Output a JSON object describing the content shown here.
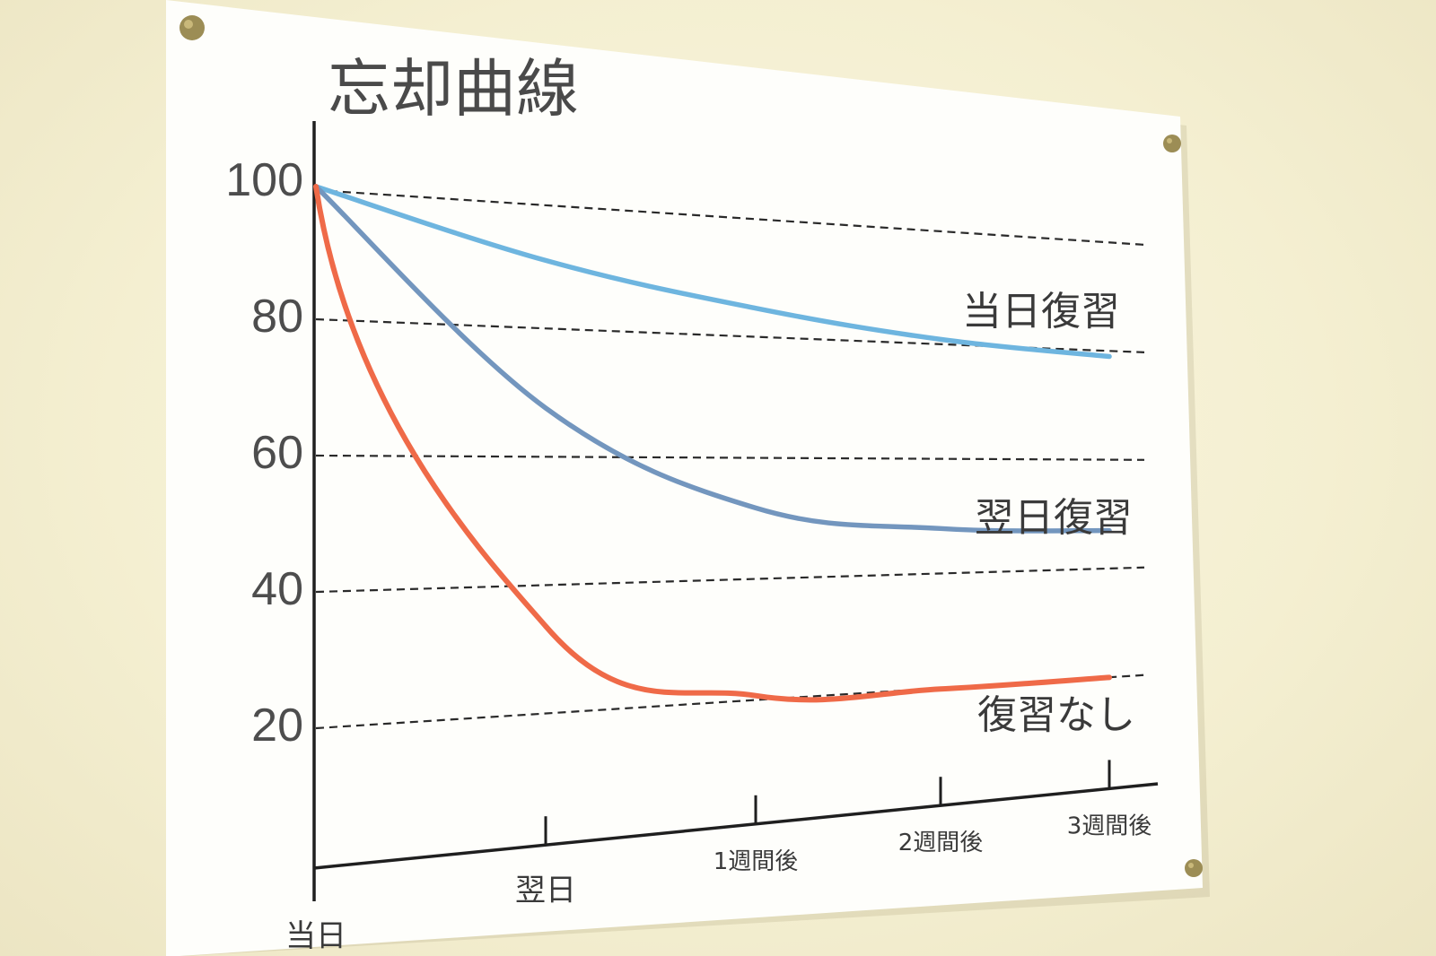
{
  "chart_data": {
    "type": "line",
    "title": "忘却曲線",
    "xlabel": "",
    "ylabel": "",
    "x": [
      "当日",
      "翌日",
      "1週間後",
      "2週間後",
      "3週間後"
    ],
    "ylim": [
      0,
      100
    ],
    "yticks": [
      "100",
      "80",
      "60",
      "40",
      "20"
    ],
    "grid": true,
    "series": [
      {
        "name": "当日復習",
        "color": "#6eb5df",
        "values": [
          100,
          91,
          85,
          81,
          79
        ]
      },
      {
        "name": "翌日復習",
        "color": "#7396be",
        "values": [
          100,
          68,
          52,
          48,
          47
        ]
      },
      {
        "name": "復習なし",
        "color": "#ef6a48",
        "values": [
          100,
          34,
          21,
          20,
          20
        ]
      }
    ]
  }
}
